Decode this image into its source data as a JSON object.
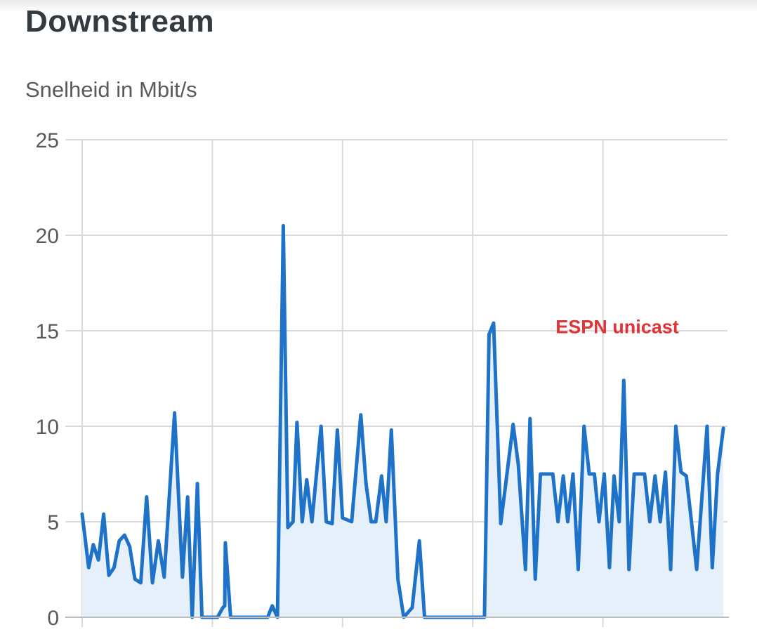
{
  "title": "Downstream",
  "subtitle": "Snelheid in Mbit/s",
  "colors": {
    "line": "#1e73c9",
    "area": "#e6f0fb",
    "grid": "#d9d9d9",
    "annotation": "#e23336"
  },
  "chart_data": {
    "type": "area",
    "title": "Downstream",
    "ylabel": "Snelheid in Mbit/s",
    "xlabel": "",
    "ylim": [
      0,
      25
    ],
    "yticks": [
      0,
      5,
      10,
      15,
      20,
      25
    ],
    "xlim": [
      0,
      100
    ],
    "x_gridlines": [
      0,
      20,
      40,
      60,
      80
    ],
    "grid": true,
    "legend": "none",
    "annotations": [
      {
        "text": "ESPN unicast",
        "x": 82.2,
        "y": 15.2
      }
    ],
    "series": [
      {
        "points": [
          [
            0,
            5.4
          ],
          [
            1,
            2.6
          ],
          [
            1.7,
            3.8
          ],
          [
            2.5,
            3.0
          ],
          [
            3.3,
            5.4
          ],
          [
            4.1,
            2.2
          ],
          [
            4.9,
            2.6
          ],
          [
            5.7,
            4.0
          ],
          [
            6.5,
            4.3
          ],
          [
            7.3,
            3.7
          ],
          [
            8.1,
            2.0
          ],
          [
            9.0,
            1.8
          ],
          [
            9.9,
            6.3
          ],
          [
            10.8,
            1.8
          ],
          [
            11.7,
            4.0
          ],
          [
            12.6,
            2.1
          ],
          [
            14.2,
            10.7
          ],
          [
            15.4,
            2.1
          ],
          [
            16.2,
            6.3
          ],
          [
            16.9,
            0
          ],
          [
            17.7,
            7.0
          ],
          [
            18.4,
            0
          ],
          [
            19.6,
            0
          ],
          [
            20.8,
            0
          ],
          [
            21.6,
            0.5
          ],
          [
            21.9,
            0.6
          ],
          [
            22.0,
            3.9
          ],
          [
            22.8,
            0
          ],
          [
            28.5,
            0
          ],
          [
            29.2,
            0.6
          ],
          [
            30.0,
            0
          ],
          [
            30.9,
            20.5
          ],
          [
            31.6,
            4.7
          ],
          [
            32.4,
            5.0
          ],
          [
            33.0,
            10.2
          ],
          [
            33.8,
            5.0
          ],
          [
            34.5,
            7.2
          ],
          [
            35.3,
            5.0
          ],
          [
            36.7,
            10.0
          ],
          [
            37.5,
            5.0
          ],
          [
            38.4,
            4.9
          ],
          [
            39.2,
            9.8
          ],
          [
            40.0,
            5.2
          ],
          [
            41.4,
            5.0
          ],
          [
            42.8,
            10.6
          ],
          [
            43.6,
            7.0
          ],
          [
            44.4,
            5.0
          ],
          [
            45.1,
            5.0
          ],
          [
            46.0,
            7.4
          ],
          [
            46.7,
            5.0
          ],
          [
            47.5,
            9.8
          ],
          [
            48.5,
            2.0
          ],
          [
            49.4,
            0
          ],
          [
            50.7,
            0.5
          ],
          [
            51.8,
            4.0
          ],
          [
            52.6,
            0
          ],
          [
            61.8,
            0
          ],
          [
            62.5,
            14.8
          ],
          [
            63.2,
            15.4
          ],
          [
            64.3,
            4.9
          ],
          [
            66.2,
            10.1
          ],
          [
            67.0,
            8.0
          ],
          [
            68.1,
            2.5
          ],
          [
            68.8,
            10.4
          ],
          [
            69.6,
            2.0
          ],
          [
            70.4,
            7.5
          ],
          [
            71.5,
            7.5
          ],
          [
            72.3,
            7.5
          ],
          [
            73.1,
            5.0
          ],
          [
            73.9,
            7.4
          ],
          [
            74.6,
            5.0
          ],
          [
            75.4,
            7.5
          ],
          [
            76.2,
            2.5
          ],
          [
            77.1,
            10.0
          ],
          [
            77.9,
            7.5
          ],
          [
            78.7,
            7.5
          ],
          [
            79.4,
            5.0
          ],
          [
            80.2,
            7.5
          ],
          [
            81.0,
            2.6
          ],
          [
            81.7,
            7.4
          ],
          [
            82.5,
            5.0
          ],
          [
            83.2,
            12.4
          ],
          [
            84.0,
            2.5
          ],
          [
            84.8,
            7.5
          ],
          [
            85.6,
            7.5
          ],
          [
            86.4,
            7.5
          ],
          [
            87.2,
            5.0
          ],
          [
            88.0,
            7.4
          ],
          [
            88.8,
            5.0
          ],
          [
            89.6,
            7.6
          ],
          [
            90.4,
            2.5
          ],
          [
            91.2,
            10.0
          ],
          [
            92.0,
            7.6
          ],
          [
            92.8,
            7.4
          ],
          [
            93.6,
            5.0
          ],
          [
            94.4,
            2.5
          ],
          [
            96.0,
            10.0
          ],
          [
            96.8,
            2.6
          ],
          [
            97.6,
            7.5
          ],
          [
            98.5,
            9.9
          ]
        ]
      }
    ]
  }
}
